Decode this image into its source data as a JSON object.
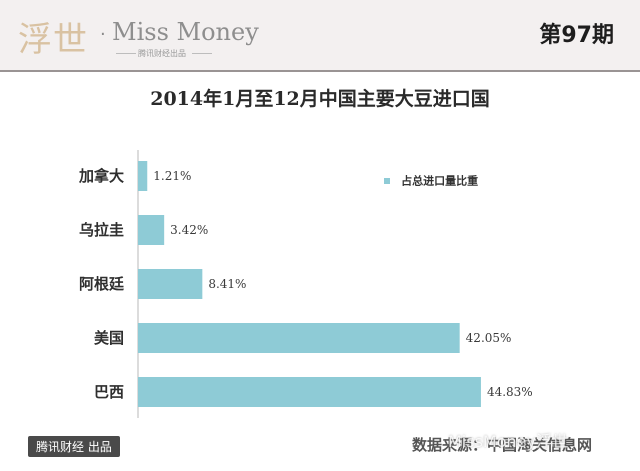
{
  "header": {
    "logo_glyphs": "浮世",
    "logo_dot": "·",
    "logo_name": "Miss Money",
    "logo_sub": "腾讯财经出品",
    "issue": "第97期"
  },
  "legend": {
    "label": "占总进口量比重"
  },
  "footer": {
    "badge": "腾讯财经 出品",
    "source": "数据来源：中国海关信息网",
    "watermark": "MissMoney浮世"
  },
  "colors": {
    "bar": "#8ecbd6",
    "header_bg": "#f3f0f0"
  },
  "chart_data": {
    "type": "bar",
    "orientation": "horizontal",
    "title": "2014年1月至12月中国主要大豆进口国",
    "categories": [
      "加拿大",
      "乌拉圭",
      "阿根廷",
      "美国",
      "巴西"
    ],
    "value_labels": [
      "1.21%",
      "3.42%",
      "8.41%",
      "42.05%",
      "44.83%"
    ],
    "series": [
      {
        "name": "占总进口量比重",
        "values": [
          1.21,
          3.42,
          8.41,
          42.05,
          44.83
        ]
      }
    ],
    "xlim": [
      0,
      50
    ],
    "grid": false,
    "legend_position": "top-right",
    "xlabel": "",
    "ylabel": ""
  }
}
